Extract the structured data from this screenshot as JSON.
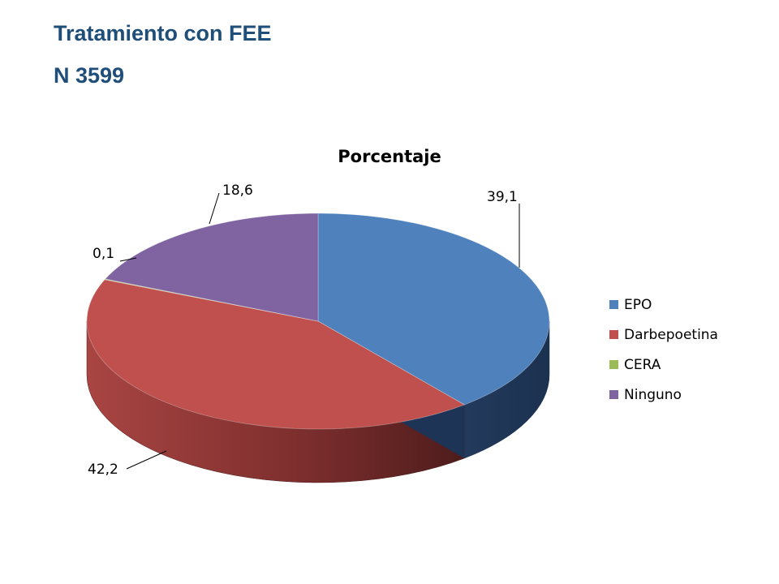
{
  "header": {
    "title": "Tratamiento con FEE",
    "subtitle": "N 3599"
  },
  "chart_data": {
    "type": "pie",
    "title": "Porcentaje",
    "labels": [
      "EPO",
      "Darbepoetina",
      "CERA",
      "Ninguno"
    ],
    "values": [
      39.1,
      42.2,
      0.1,
      18.6
    ],
    "value_labels": [
      "39,1",
      "42,2",
      "0,1",
      "18,6"
    ],
    "colors": [
      "#4f81bd",
      "#c0504d",
      "#9bbb59",
      "#8064a2"
    ],
    "style": "3d",
    "legend_position": "right"
  }
}
